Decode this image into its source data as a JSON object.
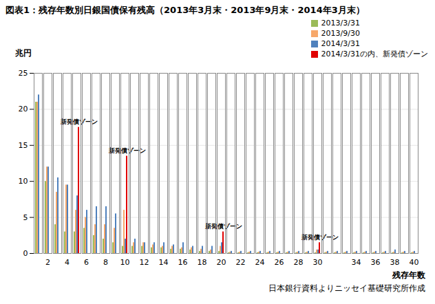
{
  "chart_data": {
    "type": "bar",
    "title": "図表1：残存年数別日銀国債保有残高（2013年3月末・2013年9月末・2014年3月末）",
    "y_label": "兆円",
    "x_label": "残存年数",
    "caption": "日本銀行資料よりニッセイ基礎研究所作成",
    "categories": [
      null,
      2,
      null,
      4,
      null,
      6,
      null,
      8,
      null,
      10,
      null,
      12,
      null,
      14,
      null,
      16,
      null,
      18,
      null,
      20,
      null,
      22,
      null,
      24,
      null,
      26,
      null,
      28,
      null,
      30,
      null,
      null,
      null,
      34,
      null,
      36,
      null,
      38,
      null,
      40
    ],
    "series": [
      {
        "name": "2013/3/31",
        "color": "#9bbb59",
        "values": [
          21,
          10,
          4,
          3,
          3,
          3.5,
          2.5,
          2,
          1.5,
          1,
          1,
          1,
          0.8,
          0.8,
          0.6,
          0.6,
          0.5,
          0.3,
          0.3,
          0.3,
          0.1,
          0.1,
          0.1,
          0.1,
          0.1,
          0.1,
          0.1,
          0.1,
          0.1,
          0.1,
          0.1,
          0.1,
          0.1,
          0.1,
          0.1,
          0.1,
          0.1,
          0.1,
          0.1,
          0.1
        ]
      },
      {
        "name": "2013/9/30",
        "color": "#f7a86a",
        "values": [
          21,
          12,
          8.5,
          9.5,
          6,
          5,
          4,
          4,
          3.5,
          6,
          1.5,
          1.5,
          1.2,
          1,
          1,
          0.8,
          0.8,
          0.6,
          0.5,
          1,
          0.2,
          0.2,
          0.2,
          0.2,
          0.2,
          0.2,
          0.2,
          0.2,
          0.2,
          0.5,
          0.2,
          0.2,
          0.2,
          0.2,
          0.2,
          0.2,
          0.2,
          0.2,
          0.2,
          0.2
        ]
      },
      {
        "name": "2014/3/31",
        "color": "#4f81bd",
        "values": [
          22,
          12,
          10.5,
          9.5,
          8,
          6,
          6.5,
          6.5,
          5.5,
          2,
          2,
          1.5,
          1.5,
          1.5,
          1.2,
          1.5,
          1,
          1,
          1,
          1.5,
          0.3,
          0.3,
          0.3,
          0.3,
          0.3,
          0.3,
          0.3,
          0.3,
          0.3,
          0.5,
          0.3,
          0.3,
          0.3,
          0.3,
          0.3,
          0.3,
          0.3,
          0.5,
          0.3,
          0.3
        ]
      },
      {
        "name": "2014/3/31の内、新発債ゾーン",
        "color": "#e00000",
        "values": [
          null,
          null,
          null,
          null,
          17.5,
          null,
          null,
          null,
          null,
          13.5,
          null,
          null,
          null,
          null,
          null,
          null,
          null,
          null,
          null,
          3,
          null,
          null,
          null,
          null,
          null,
          null,
          null,
          null,
          null,
          1.5,
          null,
          null,
          null,
          null,
          null,
          null,
          null,
          null,
          null,
          null
        ]
      }
    ],
    "annotations": [
      {
        "text": "新発債ゾーン",
        "index": 4
      },
      {
        "text": "新発債ゾーン",
        "index": 9
      },
      {
        "text": "新発債ゾーン",
        "index": 19
      },
      {
        "text": "新発債ゾーン",
        "index": 29
      }
    ],
    "ylim": [
      0,
      25
    ],
    "yticks": [
      0,
      5,
      10,
      15,
      20,
      25
    ],
    "grid": true,
    "legend": "top-right"
  }
}
